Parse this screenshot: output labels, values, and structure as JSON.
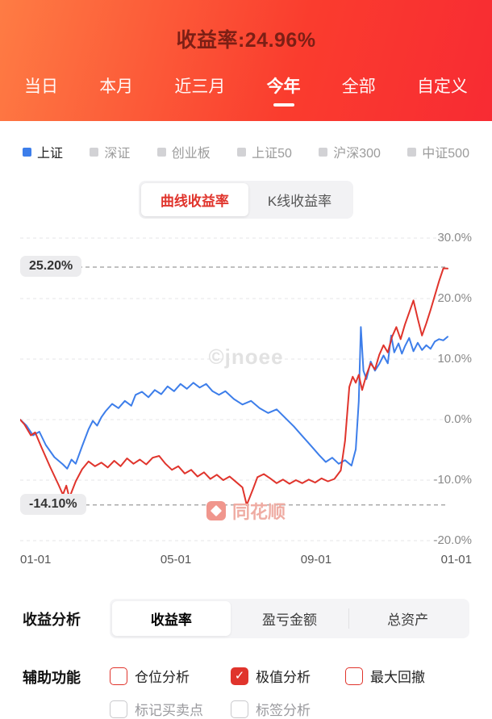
{
  "header": {
    "title": "收益率:24.96%",
    "tabs": [
      {
        "label": "当日",
        "active": false
      },
      {
        "label": "本月",
        "active": false
      },
      {
        "label": "近三月",
        "active": false
      },
      {
        "label": "今年",
        "active": true
      },
      {
        "label": "全部",
        "active": false
      },
      {
        "label": "自定义",
        "active": false
      }
    ]
  },
  "legend": {
    "items": [
      {
        "label": "上证",
        "active": true
      },
      {
        "label": "深证",
        "active": false
      },
      {
        "label": "创业板",
        "active": false
      },
      {
        "label": "上证50",
        "active": false
      },
      {
        "label": "沪深300",
        "active": false
      },
      {
        "label": "中证500",
        "active": false
      }
    ]
  },
  "chart_toggle": {
    "options": [
      {
        "label": "曲线收益率",
        "active": true
      },
      {
        "label": "K线收益率",
        "active": false
      }
    ]
  },
  "chart_data": {
    "type": "line",
    "x_ticks": [
      "01-01",
      "05-01",
      "09-01",
      "01-01"
    ],
    "y_ticks": [
      "30.0%",
      "20.0%",
      "10.0%",
      "0.0%",
      "-10.0%",
      "-20.0%"
    ],
    "ylim": [
      -20,
      30
    ],
    "grid": "dashed-horizontal",
    "legend_position": "top-left-above-chart",
    "max_annotation": {
      "label": "25.20%",
      "value": 25.2
    },
    "min_annotation": {
      "label": "-14.10%",
      "value": -14.1
    },
    "watermark": "©jnoee",
    "brand_watermark": "同花顺",
    "series": [
      {
        "name": "上证",
        "color": "#3d7eea",
        "points": [
          [
            0,
            0
          ],
          [
            0.015,
            -1
          ],
          [
            0.03,
            -2.6
          ],
          [
            0.045,
            -2
          ],
          [
            0.06,
            -4.2
          ],
          [
            0.08,
            -6.2
          ],
          [
            0.1,
            -7.4
          ],
          [
            0.11,
            -8.1
          ],
          [
            0.12,
            -6.6
          ],
          [
            0.13,
            -7.3
          ],
          [
            0.145,
            -4.4
          ],
          [
            0.16,
            -1.6
          ],
          [
            0.17,
            -0.2
          ],
          [
            0.18,
            -1
          ],
          [
            0.19,
            0.4
          ],
          [
            0.2,
            1.4
          ],
          [
            0.215,
            2.6
          ],
          [
            0.23,
            1.9
          ],
          [
            0.245,
            3.1
          ],
          [
            0.26,
            2.3
          ],
          [
            0.27,
            4.1
          ],
          [
            0.285,
            4.6
          ],
          [
            0.3,
            3.7
          ],
          [
            0.315,
            4.9
          ],
          [
            0.33,
            4.2
          ],
          [
            0.345,
            5.5
          ],
          [
            0.36,
            4.7
          ],
          [
            0.375,
            5.9
          ],
          [
            0.39,
            5.1
          ],
          [
            0.405,
            6.1
          ],
          [
            0.42,
            5.3
          ],
          [
            0.435,
            5.9
          ],
          [
            0.45,
            4.7
          ],
          [
            0.465,
            4.1
          ],
          [
            0.48,
            4.7
          ],
          [
            0.5,
            3.4
          ],
          [
            0.52,
            2.5
          ],
          [
            0.54,
            3.1
          ],
          [
            0.56,
            1.9
          ],
          [
            0.58,
            1.1
          ],
          [
            0.6,
            1.7
          ],
          [
            0.62,
            0.3
          ],
          [
            0.64,
            -1.1
          ],
          [
            0.66,
            -2.7
          ],
          [
            0.68,
            -4.3
          ],
          [
            0.7,
            -5.9
          ],
          [
            0.715,
            -7
          ],
          [
            0.73,
            -6.3
          ],
          [
            0.745,
            -7.3
          ],
          [
            0.76,
            -6.7
          ],
          [
            0.775,
            -7.6
          ],
          [
            0.785,
            -4.9
          ],
          [
            0.792,
            3
          ],
          [
            0.797,
            15.3
          ],
          [
            0.803,
            8.1
          ],
          [
            0.81,
            6.7
          ],
          [
            0.82,
            9.6
          ],
          [
            0.83,
            8.1
          ],
          [
            0.84,
            9.2
          ],
          [
            0.85,
            10.6
          ],
          [
            0.86,
            9.3
          ],
          [
            0.868,
            13.9
          ],
          [
            0.875,
            11.1
          ],
          [
            0.885,
            12.6
          ],
          [
            0.893,
            10.9
          ],
          [
            0.9,
            12.1
          ],
          [
            0.91,
            13.5
          ],
          [
            0.92,
            11.3
          ],
          [
            0.93,
            12.7
          ],
          [
            0.94,
            11.5
          ],
          [
            0.95,
            12.3
          ],
          [
            0.96,
            11.7
          ],
          [
            0.97,
            12.9
          ],
          [
            0.98,
            13.3
          ],
          [
            0.99,
            13.1
          ],
          [
            1,
            13.7
          ]
        ]
      },
      {
        "name": "收益率",
        "color": "#e0342c",
        "points": [
          [
            0,
            0
          ],
          [
            0.01,
            -0.8
          ],
          [
            0.025,
            -2.6
          ],
          [
            0.035,
            -2.1
          ],
          [
            0.05,
            -4.6
          ],
          [
            0.07,
            -7.8
          ],
          [
            0.09,
            -10.8
          ],
          [
            0.1,
            -12.4
          ],
          [
            0.108,
            -10.9
          ],
          [
            0.115,
            -12.9
          ],
          [
            0.13,
            -10.2
          ],
          [
            0.145,
            -8.2
          ],
          [
            0.16,
            -6.9
          ],
          [
            0.175,
            -7.7
          ],
          [
            0.19,
            -7.1
          ],
          [
            0.205,
            -7.9
          ],
          [
            0.22,
            -6.8
          ],
          [
            0.235,
            -7.7
          ],
          [
            0.25,
            -6.4
          ],
          [
            0.265,
            -7.3
          ],
          [
            0.28,
            -6.6
          ],
          [
            0.295,
            -7.4
          ],
          [
            0.31,
            -6.3
          ],
          [
            0.325,
            -6
          ],
          [
            0.34,
            -7.3
          ],
          [
            0.355,
            -8.3
          ],
          [
            0.37,
            -7.7
          ],
          [
            0.385,
            -8.9
          ],
          [
            0.4,
            -8.3
          ],
          [
            0.415,
            -9.4
          ],
          [
            0.43,
            -8.7
          ],
          [
            0.445,
            -9.8
          ],
          [
            0.46,
            -9.1
          ],
          [
            0.475,
            -10
          ],
          [
            0.49,
            -9.4
          ],
          [
            0.505,
            -10.3
          ],
          [
            0.52,
            -11.2
          ],
          [
            0.53,
            -14.1
          ],
          [
            0.545,
            -11.4
          ],
          [
            0.555,
            -9.5
          ],
          [
            0.57,
            -9
          ],
          [
            0.585,
            -9.7
          ],
          [
            0.6,
            -10.5
          ],
          [
            0.615,
            -9.9
          ],
          [
            0.63,
            -10.6
          ],
          [
            0.645,
            -10
          ],
          [
            0.66,
            -10.5
          ],
          [
            0.675,
            -9.9
          ],
          [
            0.69,
            -10.4
          ],
          [
            0.705,
            -9.7
          ],
          [
            0.72,
            -10.2
          ],
          [
            0.735,
            -9.8
          ],
          [
            0.75,
            -8.4
          ],
          [
            0.76,
            -3.5
          ],
          [
            0.77,
            5.4
          ],
          [
            0.778,
            7.1
          ],
          [
            0.785,
            6.1
          ],
          [
            0.792,
            7.4
          ],
          [
            0.8,
            4.9
          ],
          [
            0.81,
            7.4
          ],
          [
            0.82,
            9.3
          ],
          [
            0.83,
            8.3
          ],
          [
            0.84,
            10.7
          ],
          [
            0.85,
            12.3
          ],
          [
            0.86,
            11.1
          ],
          [
            0.87,
            13.7
          ],
          [
            0.88,
            15.3
          ],
          [
            0.89,
            13.3
          ],
          [
            0.9,
            15.7
          ],
          [
            0.91,
            17.7
          ],
          [
            0.92,
            19.7
          ],
          [
            0.93,
            16.7
          ],
          [
            0.94,
            13.9
          ],
          [
            0.95,
            15.9
          ],
          [
            0.96,
            18.1
          ],
          [
            0.97,
            20.5
          ],
          [
            0.98,
            22.9
          ],
          [
            0.99,
            25.0
          ],
          [
            1,
            24.96
          ]
        ]
      }
    ]
  },
  "analysis": {
    "label": "收益分析",
    "tabs": [
      {
        "label": "收益率",
        "active": true
      },
      {
        "label": "盈亏金额",
        "active": false
      },
      {
        "label": "总资产",
        "active": false
      }
    ]
  },
  "aux": {
    "label": "辅助功能",
    "options": [
      {
        "label": "仓位分析",
        "checked": false,
        "style": "red"
      },
      {
        "label": "极值分析",
        "checked": true,
        "style": "red"
      },
      {
        "label": "最大回撤",
        "checked": false,
        "style": "red"
      },
      {
        "label": "标记买卖点",
        "checked": false,
        "style": "gray"
      },
      {
        "label": "标签分析",
        "checked": false,
        "style": "gray"
      }
    ]
  },
  "icons": {
    "check": "✓"
  },
  "colors": {
    "accent_red": "#e0342c",
    "index_blue": "#3d7eea",
    "header_gradient_start": "#fe7c44",
    "header_gradient_end": "#f82b33",
    "title_text": "#7c1f15"
  }
}
